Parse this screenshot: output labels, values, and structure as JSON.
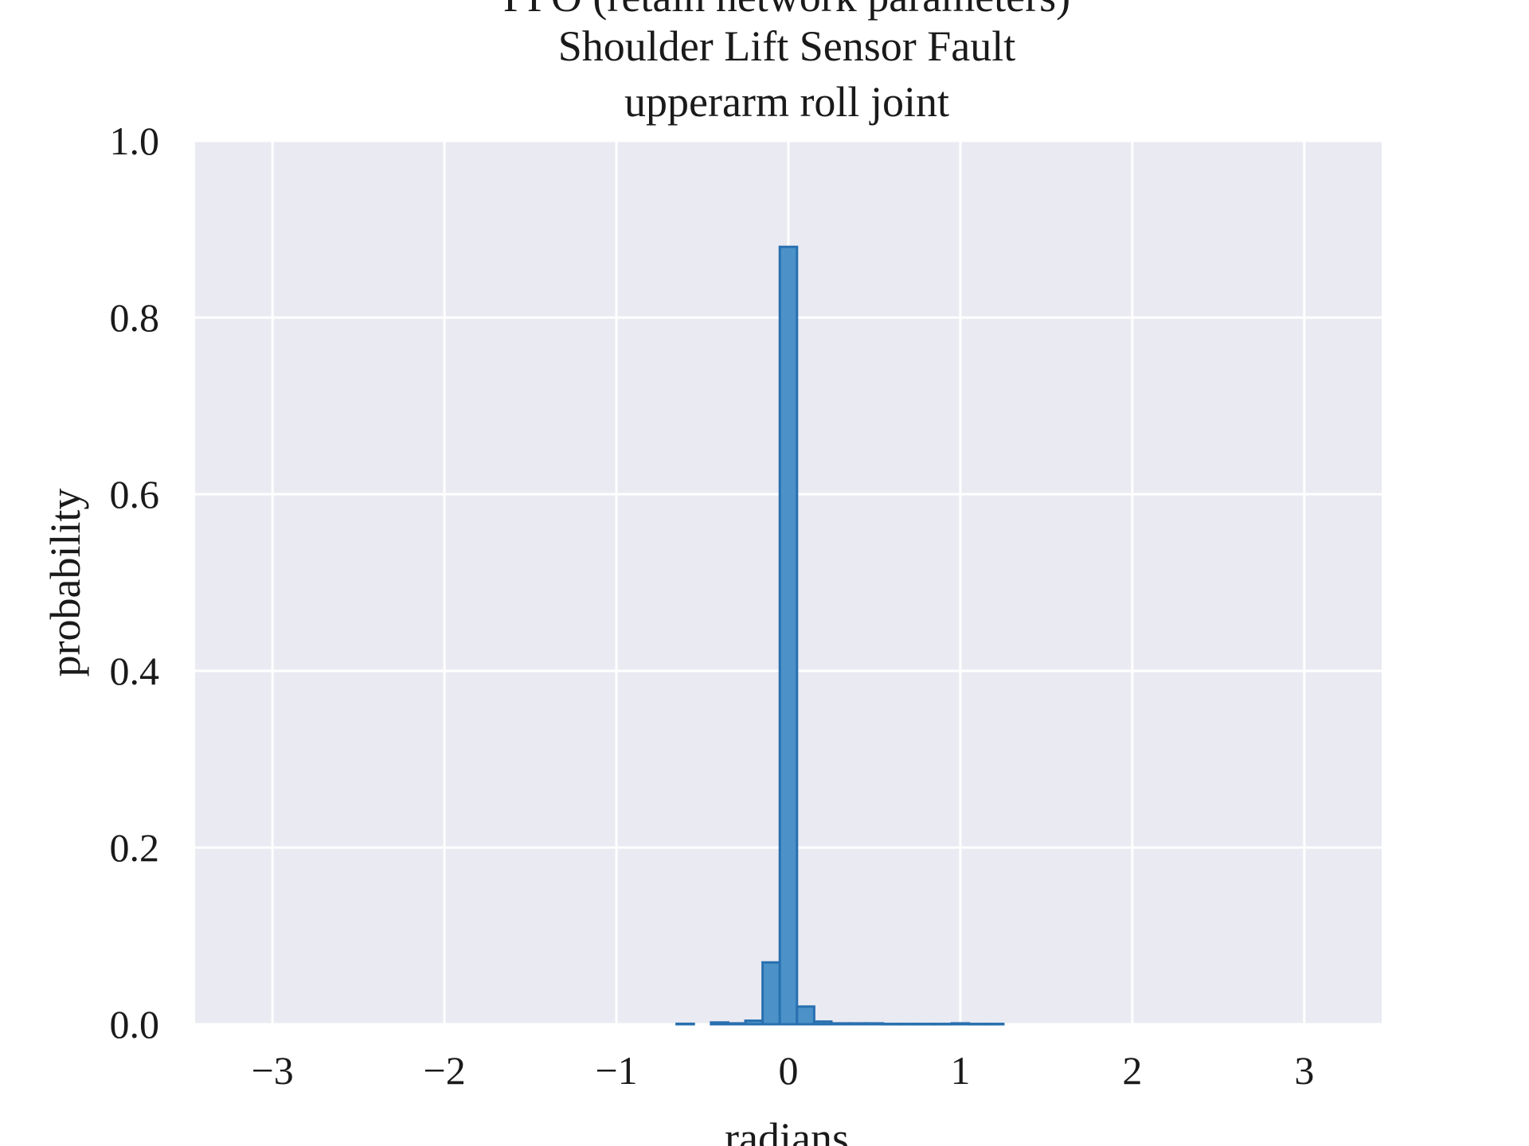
{
  "chart_data": {
    "type": "bar",
    "title_lines": [
      "PPO (retain network parameters)",
      "Shoulder Lift Sensor Fault",
      "upperarm roll joint"
    ],
    "xlabel": "radians",
    "ylabel": "probability",
    "xlim": [
      -3.45,
      3.45
    ],
    "ylim": [
      0.0,
      1.0
    ],
    "xticks": [
      -3,
      -2,
      -1,
      0,
      1,
      2,
      3
    ],
    "xtick_labels": [
      "−3",
      "−2",
      "−1",
      "0",
      "1",
      "2",
      "3"
    ],
    "yticks": [
      0.0,
      0.2,
      0.4,
      0.6,
      0.8,
      1.0
    ],
    "ytick_labels": [
      "0.0",
      "0.2",
      "0.4",
      "0.6",
      "0.8",
      "1.0"
    ],
    "grid": true,
    "bin_width": 0.1,
    "bins": [
      {
        "x0": -0.65,
        "x1": -0.55,
        "value": 0.0005
      },
      {
        "x0": -0.45,
        "x1": -0.35,
        "value": 0.002
      },
      {
        "x0": -0.35,
        "x1": -0.25,
        "value": 0.001
      },
      {
        "x0": -0.25,
        "x1": -0.15,
        "value": 0.004
      },
      {
        "x0": -0.15,
        "x1": -0.05,
        "value": 0.07
      },
      {
        "x0": -0.05,
        "x1": 0.05,
        "value": 0.88
      },
      {
        "x0": 0.05,
        "x1": 0.15,
        "value": 0.02
      },
      {
        "x0": 0.15,
        "x1": 0.25,
        "value": 0.003
      },
      {
        "x0": 0.25,
        "x1": 0.35,
        "value": 0.001
      },
      {
        "x0": 0.35,
        "x1": 0.45,
        "value": 0.001
      },
      {
        "x0": 0.45,
        "x1": 0.55,
        "value": 0.001
      },
      {
        "x0": 0.55,
        "x1": 0.65,
        "value": 0.0004
      },
      {
        "x0": 0.65,
        "x1": 0.75,
        "value": 0.0004
      },
      {
        "x0": 0.75,
        "x1": 0.85,
        "value": 0.0004
      },
      {
        "x0": 0.85,
        "x1": 0.95,
        "value": 0.0004
      },
      {
        "x0": 0.95,
        "x1": 1.05,
        "value": 0.001
      },
      {
        "x0": 1.05,
        "x1": 1.15,
        "value": 0.0004
      },
      {
        "x0": 1.15,
        "x1": 1.25,
        "value": 0.0004
      }
    ],
    "colors": {
      "plot_background": "#eaeaf2",
      "bar_fill": "#4c92c8",
      "bar_edge": "#2870b0",
      "grid": "#ffffff"
    }
  }
}
